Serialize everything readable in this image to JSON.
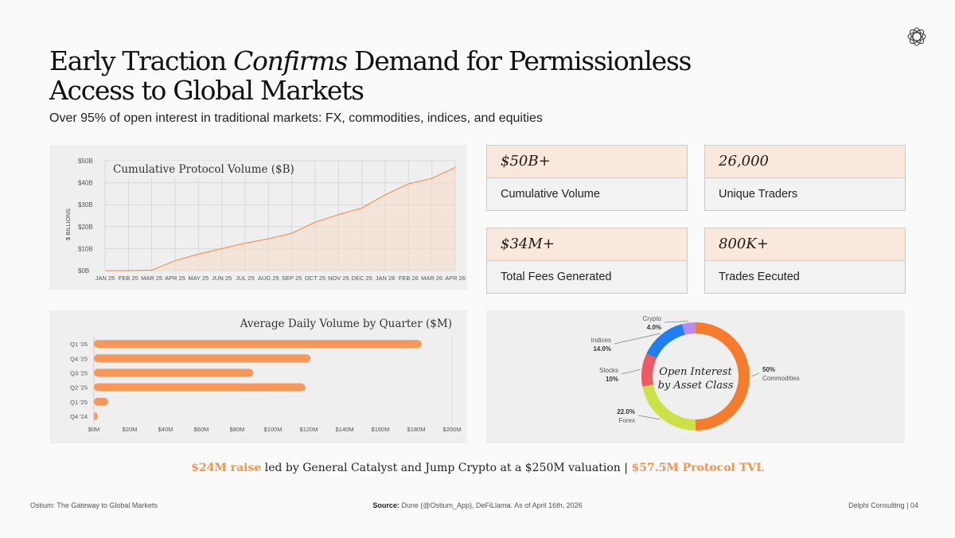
{
  "header": {
    "title_part1": "Early Traction ",
    "title_italic": "Confirms",
    "title_part2": " Demand for Permissionless Access to Global Markets",
    "subtitle": "Over 95% of open interest in traditional markets: FX, commodities, indices, and equities"
  },
  "logo": {
    "icon": "flower-logo-icon"
  },
  "stats": [
    {
      "value": "$50B+",
      "label": "Cumulative Volume"
    },
    {
      "value": "26,000",
      "label": "Unique Traders"
    },
    {
      "value": "$34M+",
      "label": "Total Fees Generated"
    },
    {
      "value": "800K+",
      "label": "Trades Eecuted"
    }
  ],
  "chart_data": [
    {
      "type": "area",
      "title": "Cumulative Protocol Volume ($B)",
      "ylabel": "$ BILLIONS",
      "x": [
        "JAN 25",
        "FEB 25",
        "MAR 25",
        "APR 25",
        "MAY 25",
        "JUN 25",
        "JUL 25",
        "AUG 25",
        "SEP 25",
        "OCT 25",
        "NOV 25",
        "DEC 25",
        "JAN 26",
        "FEB 26",
        "MAR 26",
        "APR 26"
      ],
      "series": [
        {
          "values": [
            0,
            0,
            0.2,
            4.5,
            7.5,
            10,
            12.5,
            14.5,
            17,
            22,
            25.5,
            28.5,
            34.5,
            39.5,
            42,
            47
          ]
        }
      ],
      "yticks": [
        "$0B",
        "$10B",
        "$20B",
        "$30B",
        "$40B",
        "$50B"
      ],
      "ylim": [
        0,
        50
      ],
      "grid": true,
      "colors": {
        "line": "#f39a63",
        "fill": "#f7d9c4"
      }
    },
    {
      "type": "bar",
      "orientation": "horizontal",
      "title": "Average Daily Volume by Quarter ($M)",
      "categories": [
        "Q1 '26",
        "Q4 '25",
        "Q3 '25",
        "Q2 '25",
        "Q1 '25",
        "Q4 '24"
      ],
      "values": [
        183,
        121,
        89,
        118,
        8,
        2
      ],
      "xticks": [
        "$0M",
        "$20M",
        "$40M",
        "$60M",
        "$80M",
        "$100M",
        "$120M",
        "$140M",
        "$160M",
        "$180M",
        "$200M"
      ],
      "xlim": [
        0,
        200
      ],
      "colors": {
        "bar": "#f7975a"
      }
    },
    {
      "type": "pie",
      "style": "donut",
      "title": "Open Interest by Asset Class",
      "center_line1": "Open Interest",
      "center_line2": "by Asset Class",
      "slices": [
        {
          "name": "Commodities",
          "value": 50,
          "pct_label": "50%",
          "color": "#f47c2c"
        },
        {
          "name": "Forex",
          "value": 22,
          "pct_label": "22.0%",
          "color": "#cde047"
        },
        {
          "name": "Stocks",
          "value": 10,
          "pct_label": "10%",
          "color": "#ec5a63"
        },
        {
          "name": "Indices",
          "value": 14,
          "pct_label": "14.0%",
          "color": "#1f7ff0"
        },
        {
          "name": "Crypto",
          "value": 4,
          "pct_label": "4.0%",
          "color": "#b98af2"
        }
      ]
    }
  ],
  "raise": {
    "highlight1": "$24M raise",
    "middle": " led by General Catalyst and Jump Crypto at a $250M valuation | ",
    "highlight2": "$57.5M Protocol TVL"
  },
  "footer": {
    "left": "Ostium: The Gateway to Global Markets",
    "source_label": "Source:",
    "source_text": " Dune (@Ostium_App), DeFiLlama. As of April 16th, 2026",
    "right": "Delphi Consulting  |  04"
  }
}
